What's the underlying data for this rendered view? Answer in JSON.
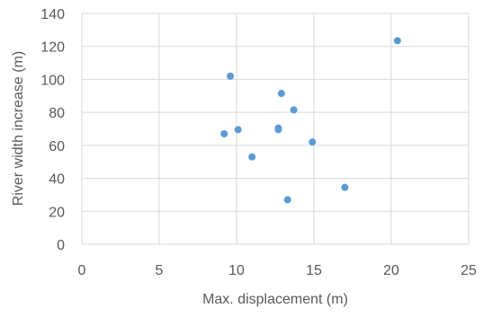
{
  "chart_data": {
    "type": "scatter",
    "title": "",
    "xlabel": "Max. displacement (m)",
    "ylabel": "River width increase (m)",
    "xlim": [
      0,
      25
    ],
    "ylim": [
      0,
      140
    ],
    "xticks": [
      0,
      5,
      10,
      15,
      20,
      25
    ],
    "yticks": [
      0,
      20,
      40,
      60,
      80,
      100,
      120,
      140
    ],
    "grid": true,
    "legend": "none",
    "series": [
      {
        "color": "#5b9bd5",
        "points": [
          {
            "x": 9.2,
            "y": 67
          },
          {
            "x": 9.6,
            "y": 102
          },
          {
            "x": 10.1,
            "y": 69.5
          },
          {
            "x": 11.0,
            "y": 53
          },
          {
            "x": 12.7,
            "y": 70.5
          },
          {
            "x": 12.7,
            "y": 69.5
          },
          {
            "x": 12.9,
            "y": 91.5
          },
          {
            "x": 13.3,
            "y": 27
          },
          {
            "x": 13.7,
            "y": 81.5
          },
          {
            "x": 14.9,
            "y": 62
          },
          {
            "x": 17.0,
            "y": 34.5
          },
          {
            "x": 20.4,
            "y": 123.5
          }
        ]
      }
    ]
  }
}
